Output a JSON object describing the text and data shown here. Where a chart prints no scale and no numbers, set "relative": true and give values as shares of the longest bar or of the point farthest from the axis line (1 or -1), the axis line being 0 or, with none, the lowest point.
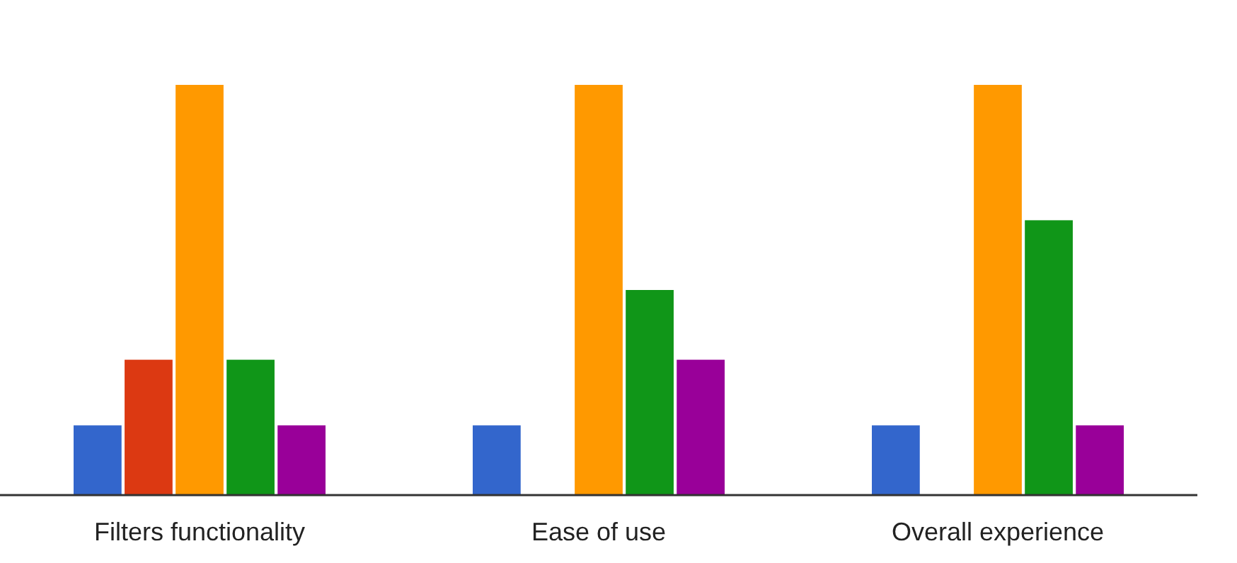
{
  "chart_data": {
    "type": "bar",
    "relative": true,
    "categories": [
      "Filters functionality",
      "Ease of use",
      "Overall experience"
    ],
    "series": [
      {
        "color": "#3366cc",
        "values": [
          0.17,
          0.17,
          0.17
        ]
      },
      {
        "color": "#dc3912",
        "values": [
          0.33,
          0,
          0
        ]
      },
      {
        "color": "#ff9900",
        "values": [
          1,
          1,
          1
        ]
      },
      {
        "color": "#109618",
        "values": [
          0.33,
          0.5,
          0.67
        ]
      },
      {
        "color": "#990099",
        "values": [
          0.17,
          0.33,
          0.17
        ]
      }
    ]
  }
}
